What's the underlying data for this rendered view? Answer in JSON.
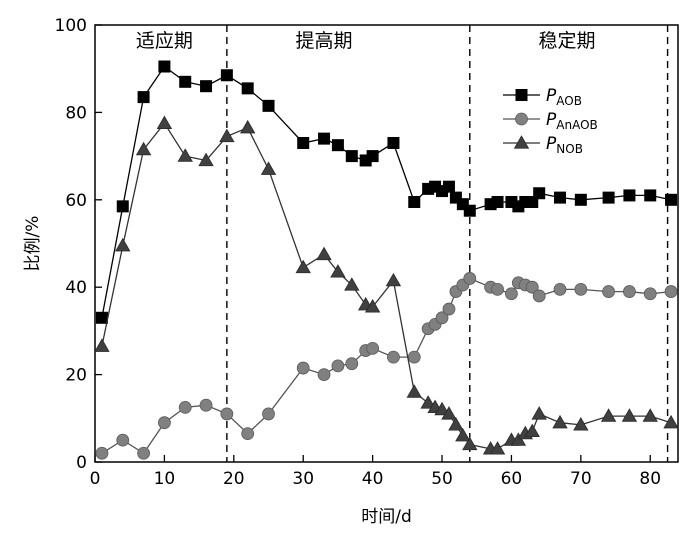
{
  "chart_data": {
    "type": "line",
    "xlabel": "时间/d",
    "ylabel": "比例/%",
    "xlim": [
      0,
      84
    ],
    "ylim": [
      0,
      100
    ],
    "xticks": [
      0,
      10,
      20,
      30,
      40,
      50,
      60,
      70,
      80
    ],
    "yticks": [
      0,
      20,
      40,
      60,
      80,
      100
    ],
    "grid": false,
    "legend_position": "upper-right",
    "phase_boundaries": [
      19,
      54,
      82.5
    ],
    "phases": [
      {
        "label": "适应期",
        "x_center": 10
      },
      {
        "label": "提高期",
        "x_center": 33
      },
      {
        "label": "稳定期",
        "x_center": 68
      }
    ],
    "series": [
      {
        "name_main": "P",
        "name_sub": "AOB",
        "marker": "square",
        "color": "#000000",
        "points": [
          [
            1,
            33
          ],
          [
            4,
            58.5
          ],
          [
            7,
            83.5
          ],
          [
            10,
            90.5
          ],
          [
            13,
            87
          ],
          [
            16,
            86
          ],
          [
            19,
            88.5
          ],
          [
            22,
            85.5
          ],
          [
            25,
            81.5
          ],
          [
            30,
            73
          ],
          [
            33,
            74
          ],
          [
            35,
            72.5
          ],
          [
            37,
            70
          ],
          [
            39,
            69
          ],
          [
            40,
            70
          ],
          [
            43,
            73
          ],
          [
            46,
            59.5
          ],
          [
            48,
            62.5
          ],
          [
            49,
            63
          ],
          [
            50,
            62
          ],
          [
            51,
            63
          ],
          [
            52,
            60.5
          ],
          [
            53,
            59
          ],
          [
            54,
            57.5
          ],
          [
            57,
            59
          ],
          [
            58,
            59.5
          ],
          [
            60,
            59.5
          ],
          [
            61,
            58.5
          ],
          [
            62,
            59.5
          ],
          [
            63,
            59.5
          ],
          [
            64,
            61.5
          ],
          [
            67,
            60.5
          ],
          [
            70,
            60
          ],
          [
            74,
            60.5
          ],
          [
            77,
            61
          ],
          [
            80,
            61
          ],
          [
            83,
            60
          ]
        ]
      },
      {
        "name_main": "P",
        "name_sub": "AnAOB",
        "marker": "circle",
        "color": "#808080",
        "points": [
          [
            1,
            2
          ],
          [
            4,
            5
          ],
          [
            7,
            2
          ],
          [
            10,
            9
          ],
          [
            13,
            12.5
          ],
          [
            16,
            13
          ],
          [
            19,
            11
          ],
          [
            22,
            6.5
          ],
          [
            25,
            11
          ],
          [
            30,
            21.5
          ],
          [
            33,
            20
          ],
          [
            35,
            22
          ],
          [
            37,
            22.5
          ],
          [
            39,
            25.5
          ],
          [
            40,
            26
          ],
          [
            43,
            24
          ],
          [
            46,
            24
          ],
          [
            48,
            30.5
          ],
          [
            49,
            31.5
          ],
          [
            50,
            33
          ],
          [
            51,
            35
          ],
          [
            52,
            39
          ],
          [
            53,
            40.5
          ],
          [
            54,
            42
          ],
          [
            57,
            40
          ],
          [
            58,
            39.5
          ],
          [
            60,
            38.5
          ],
          [
            61,
            41
          ],
          [
            62,
            40.5
          ],
          [
            63,
            40
          ],
          [
            64,
            38
          ],
          [
            67,
            39.5
          ],
          [
            70,
            39.5
          ],
          [
            74,
            39
          ],
          [
            77,
            39
          ],
          [
            80,
            38.5
          ],
          [
            83,
            39
          ]
        ]
      },
      {
        "name_main": "P",
        "name_sub": "NOB",
        "marker": "triangle",
        "color": "#404040",
        "points": [
          [
            1,
            26.5
          ],
          [
            4,
            49.5
          ],
          [
            7,
            71.5
          ],
          [
            10,
            77.5
          ],
          [
            13,
            70
          ],
          [
            16,
            69
          ],
          [
            19,
            74.5
          ],
          [
            22,
            76.5
          ],
          [
            25,
            67
          ],
          [
            30,
            44.5
          ],
          [
            33,
            47.5
          ],
          [
            35,
            43.5
          ],
          [
            37,
            40.5
          ],
          [
            39,
            36
          ],
          [
            40,
            35.5
          ],
          [
            43,
            41.5
          ],
          [
            46,
            16
          ],
          [
            48,
            13.5
          ],
          [
            49,
            12.5
          ],
          [
            50,
            12
          ],
          [
            51,
            11
          ],
          [
            52,
            8.5
          ],
          [
            53,
            6
          ],
          [
            54,
            4
          ],
          [
            57,
            3
          ],
          [
            58,
            3
          ],
          [
            60,
            5
          ],
          [
            61,
            5
          ],
          [
            62,
            6.5
          ],
          [
            63,
            7
          ],
          [
            64,
            11
          ],
          [
            67,
            9
          ],
          [
            70,
            8.5
          ],
          [
            74,
            10.5
          ],
          [
            77,
            10.5
          ],
          [
            80,
            10.5
          ],
          [
            83,
            9
          ]
        ]
      }
    ]
  }
}
